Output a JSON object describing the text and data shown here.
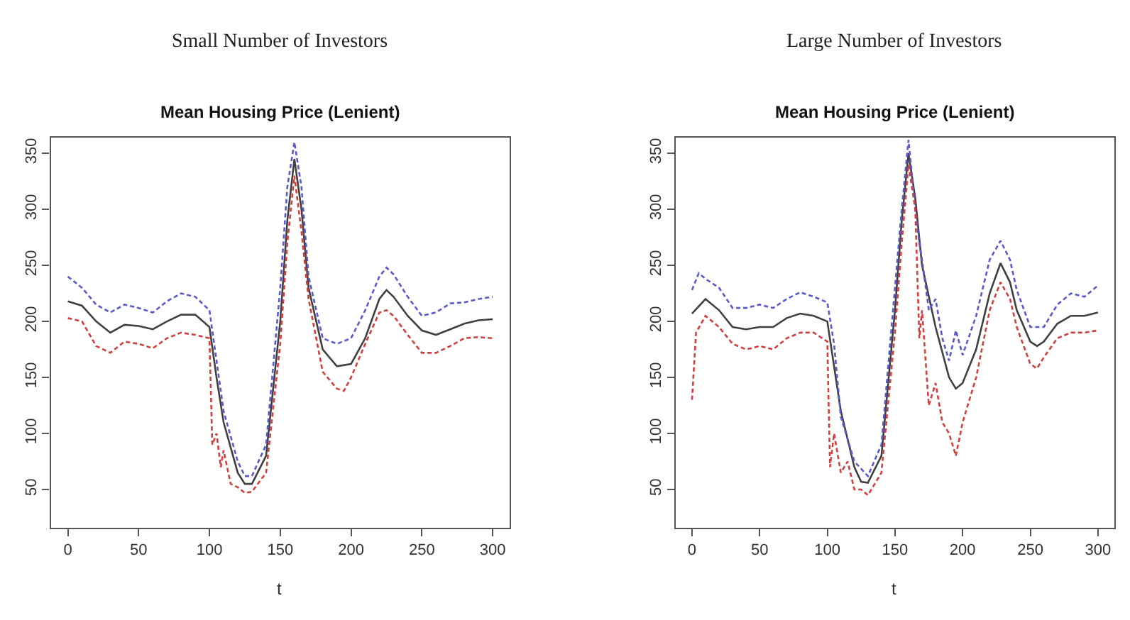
{
  "chart_data": [
    {
      "type": "line",
      "subtitle": "Small Number of Investors",
      "title": "Mean Housing Price (Lenient)",
      "xlabel": "t",
      "xlim": [
        -12,
        312
      ],
      "ylim": [
        16,
        364
      ],
      "xticks": [
        0,
        50,
        100,
        150,
        200,
        250,
        300
      ],
      "yticks": [
        50,
        100,
        150,
        200,
        250,
        300,
        350
      ],
      "marker": "none",
      "series": [
        {
          "color": "#404040",
          "line_style": "solid",
          "x": [
            0,
            10,
            20,
            30,
            40,
            50,
            60,
            70,
            80,
            90,
            100,
            105,
            110,
            120,
            125,
            130,
            140,
            150,
            155,
            160,
            165,
            170,
            180,
            190,
            200,
            210,
            220,
            225,
            230,
            240,
            250,
            260,
            270,
            280,
            290,
            300
          ],
          "values": [
            218,
            214,
            200,
            190,
            197,
            196,
            193,
            200,
            206,
            206,
            195,
            150,
            110,
            65,
            55,
            55,
            80,
            200,
            290,
            345,
            300,
            230,
            175,
            160,
            162,
            185,
            220,
            228,
            222,
            205,
            192,
            188,
            193,
            198,
            201,
            202
          ]
        },
        {
          "color": "#5a5ac8",
          "line_style": "dashed",
          "x": [
            0,
            10,
            20,
            30,
            40,
            50,
            60,
            70,
            80,
            90,
            100,
            105,
            110,
            120,
            125,
            130,
            140,
            150,
            155,
            160,
            165,
            170,
            180,
            190,
            200,
            210,
            220,
            225,
            230,
            240,
            250,
            260,
            270,
            280,
            290,
            300
          ],
          "values": [
            240,
            230,
            215,
            208,
            215,
            212,
            208,
            218,
            225,
            222,
            210,
            165,
            120,
            75,
            62,
            62,
            90,
            230,
            320,
            360,
            320,
            240,
            185,
            180,
            185,
            210,
            240,
            248,
            242,
            222,
            205,
            208,
            216,
            217,
            220,
            222
          ]
        },
        {
          "color": "#d04040",
          "line_style": "dashed",
          "x": [
            0,
            10,
            20,
            30,
            40,
            50,
            60,
            70,
            80,
            90,
            100,
            102,
            105,
            108,
            110,
            115,
            120,
            125,
            130,
            140,
            150,
            155,
            160,
            165,
            170,
            180,
            190,
            195,
            200,
            210,
            220,
            225,
            230,
            240,
            250,
            260,
            270,
            280,
            290,
            300
          ],
          "values": [
            203,
            200,
            178,
            172,
            182,
            180,
            176,
            185,
            190,
            188,
            185,
            90,
            100,
            70,
            85,
            55,
            52,
            47,
            48,
            65,
            180,
            270,
            330,
            280,
            220,
            155,
            140,
            138,
            150,
            180,
            208,
            210,
            205,
            188,
            172,
            172,
            178,
            185,
            186,
            185
          ]
        }
      ]
    },
    {
      "type": "line",
      "subtitle": "Large Number of Investors",
      "title": "Mean Housing Price (Lenient)",
      "xlabel": "t",
      "xlim": [
        -12,
        312
      ],
      "ylim": [
        16,
        364
      ],
      "xticks": [
        0,
        50,
        100,
        150,
        200,
        250,
        300
      ],
      "yticks": [
        50,
        100,
        150,
        200,
        250,
        300,
        350
      ],
      "marker": "none",
      "series": [
        {
          "color": "#404040",
          "line_style": "solid",
          "x": [
            0,
            10,
            20,
            30,
            40,
            50,
            60,
            70,
            80,
            90,
            100,
            110,
            120,
            125,
            130,
            140,
            150,
            155,
            160,
            165,
            170,
            180,
            190,
            195,
            200,
            210,
            220,
            228,
            235,
            240,
            250,
            255,
            260,
            270,
            280,
            290,
            300
          ],
          "values": [
            207,
            220,
            210,
            195,
            193,
            195,
            195,
            203,
            207,
            205,
            200,
            120,
            70,
            57,
            56,
            80,
            210,
            290,
            350,
            310,
            250,
            195,
            150,
            140,
            145,
            175,
            225,
            252,
            235,
            210,
            182,
            178,
            182,
            198,
            205,
            205,
            208
          ]
        },
        {
          "color": "#5a5ac8",
          "line_style": "dashed",
          "x": [
            0,
            5,
            10,
            20,
            30,
            40,
            50,
            60,
            70,
            80,
            90,
            100,
            105,
            110,
            120,
            130,
            140,
            150,
            155,
            160,
            165,
            168,
            170,
            175,
            180,
            185,
            190,
            195,
            200,
            210,
            220,
            228,
            235,
            240,
            250,
            260,
            270,
            280,
            290,
            300
          ],
          "values": [
            228,
            243,
            238,
            230,
            212,
            212,
            215,
            212,
            220,
            226,
            222,
            217,
            180,
            115,
            75,
            62,
            90,
            230,
            300,
            362,
            300,
            270,
            255,
            210,
            220,
            185,
            165,
            192,
            170,
            205,
            255,
            272,
            255,
            228,
            195,
            195,
            215,
            225,
            222,
            232
          ]
        },
        {
          "color": "#d04040",
          "line_style": "dashed",
          "x": [
            0,
            3,
            10,
            20,
            30,
            40,
            50,
            60,
            70,
            80,
            90,
            100,
            102,
            105,
            110,
            115,
            120,
            125,
            130,
            140,
            150,
            155,
            160,
            165,
            168,
            170,
            175,
            180,
            185,
            190,
            195,
            200,
            210,
            220,
            228,
            235,
            240,
            250,
            255,
            260,
            270,
            280,
            290,
            300
          ],
          "values": [
            130,
            190,
            205,
            195,
            180,
            175,
            178,
            175,
            185,
            190,
            190,
            182,
            70,
            100,
            65,
            75,
            50,
            50,
            45,
            65,
            190,
            270,
            340,
            300,
            185,
            210,
            125,
            145,
            110,
            100,
            80,
            110,
            150,
            210,
            235,
            220,
            195,
            162,
            158,
            168,
            185,
            190,
            190,
            192
          ]
        }
      ]
    }
  ]
}
